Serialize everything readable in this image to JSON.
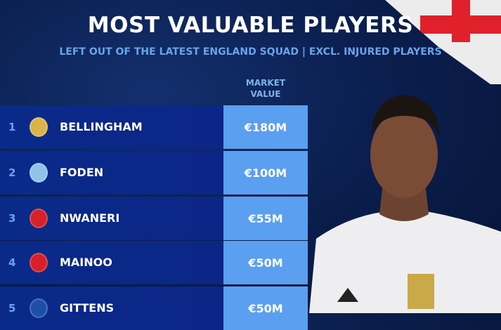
{
  "title": "MOST VALUABLE PLAYERS",
  "subtitle": "LEFT OUT OF THE LATEST ENGLAND SQUAD | EXCL. INJURED PLAYERS",
  "column_header": "MARKET VALUE",
  "rows": [
    {
      "rank": "1",
      "club_icon": "real-madrid-crest",
      "crest_color": "#d8b44a",
      "name": "BELLINGHAM",
      "value": "€180M"
    },
    {
      "rank": "2",
      "club_icon": "manchester-city-crest",
      "crest_color": "#8fc3ea",
      "name": "FODEN",
      "value": "€100M"
    },
    {
      "rank": "3",
      "club_icon": "arsenal-crest",
      "crest_color": "#d6202a",
      "name": "NWANERI",
      "value": "€55M"
    },
    {
      "rank": "4",
      "club_icon": "manchester-united-crest",
      "crest_color": "#d8202a",
      "name": "MAINOO",
      "value": "€50M"
    },
    {
      "rank": "5",
      "club_icon": "chelsea-crest",
      "crest_color": "#1d4fa8",
      "name": "GITTENS",
      "value": "€50M"
    }
  ]
}
